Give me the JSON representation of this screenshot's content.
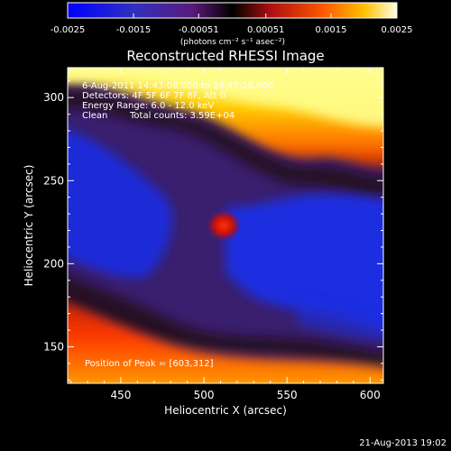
{
  "chart_data": {
    "type": "heatmap",
    "title": "Reconstructed RHESSI Image",
    "xlabel": "Heliocentric X (arcsec)",
    "ylabel": "Heliocentric Y (arcsec)",
    "xlim": [
      418,
      608
    ],
    "ylim": [
      128,
      318
    ],
    "x_ticks": [
      450,
      500,
      550,
      600
    ],
    "y_ticks": [
      150,
      200,
      250,
      300
    ],
    "colorbar": {
      "ticks": [
        "-0.0025",
        "-0.0015",
        "-0.00051",
        "0.00051",
        "0.0015",
        "0.0025"
      ],
      "range": [
        -0.0025,
        0.0025
      ],
      "units_line": "(photons cm⁻² s⁻¹ asec⁻²)"
    },
    "annotations": [
      "6-Aug-2011 14:43:08.000 to 14:47:28.000",
      "Detectors: 4F 5F 6F 7F 8F, Att 0",
      "Energy Range: 6.0 - 12.0 keV",
      "Clean",
      "Total counts: 3.59E+04",
      "Position of Peak = [603,312]"
    ],
    "peak_position": [
      603,
      312
    ],
    "features": [
      {
        "kind": "hot-region",
        "level": "high",
        "x_range": [
          418,
          608
        ],
        "y_range": [
          270,
          318
        ]
      },
      {
        "kind": "cold-band",
        "level": "low",
        "x_range": [
          418,
          608
        ],
        "y_range": [
          170,
          260
        ]
      },
      {
        "kind": "compact-source",
        "level": "medium-high",
        "center": [
          512,
          215
        ]
      },
      {
        "kind": "warm-region",
        "level": "medium-high",
        "x_range": [
          418,
          520
        ],
        "y_range": [
          128,
          165
        ]
      }
    ]
  },
  "footer": {
    "timestamp": "21-Aug-2013 19:02"
  }
}
